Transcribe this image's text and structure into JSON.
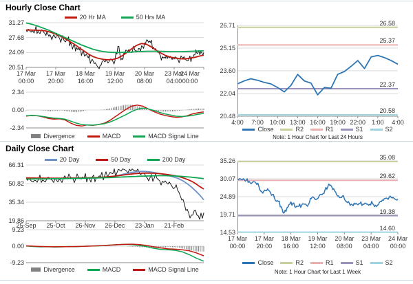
{
  "colors": {
    "price_black": "#1a1a1a",
    "ma_red": "#c0190f",
    "ma_green": "#0ea653",
    "ma_blue": "#6d91c9",
    "close_blue": "#2e75b6",
    "r2_olive": "#c9cf9a",
    "r1_pink": "#e8b0ae",
    "s1_purple": "#9b92ba",
    "s2_cyan": "#9ed3df",
    "divergence_gray": "#818181",
    "gridline": "#d9d9d9",
    "axis": "#8c8c8c",
    "divider": "#ccd6dd"
  },
  "chart_data": [
    {
      "id": "hm",
      "type": "line",
      "title": "Hourly Close Chart",
      "ylim": [
        20.51,
        31.27
      ],
      "yticks": [
        "31.27",
        "27.68",
        "24.09",
        "20.51"
      ],
      "xticks": [
        "17 Mar|00:00",
        "17 Mar|20:00",
        "18 Mar|16:00",
        "19 Mar|12:00",
        "20 Mar|08:00",
        "23 Mar|04:00",
        "24 Mar|00:00"
      ],
      "legend": [
        {
          "label": "20 Hr MA",
          "color": "#c0190f",
          "type": "line"
        },
        {
          "label": "50 Hrs MA",
          "color": "#0ea653",
          "type": "line"
        }
      ],
      "series": [
        {
          "name": "Close",
          "color": "#1a1a1a",
          "width": 1,
          "noise": 0.6,
          "values": [
            29.4,
            29.6,
            29.3,
            29.5,
            29.2,
            29.3,
            28.9,
            29.1,
            28.4,
            27.9,
            27.6,
            27.8,
            27.3,
            26.8,
            27.0,
            26.4,
            25.8,
            25.3,
            24.7,
            24.1,
            23.4,
            22.8,
            22.1,
            21.4,
            20.8,
            21.0,
            22.1,
            22.4,
            21.9,
            22.3,
            22.1,
            25.6,
            22.3,
            23.9,
            24.6,
            24.3,
            24.7,
            24.5,
            25.1,
            25.7,
            26.4,
            27.1,
            26.5,
            25.4,
            24.6,
            23.8,
            23.1,
            22.7,
            23.2,
            22.8,
            22.5,
            22.8,
            22.4,
            22.7,
            22.3,
            22.6,
            23.0,
            23.5,
            23.9,
            24.3,
            24.1
          ]
        },
        {
          "name": "20 Hr MA",
          "color": "#c0190f",
          "width": 1.8,
          "noise": 0,
          "values": [
            29.5,
            29.5,
            29.45,
            29.4,
            29.3,
            29.0,
            28.6,
            28.1,
            27.5,
            26.8,
            26.1,
            25.3,
            24.5,
            23.7,
            23.1,
            22.7,
            22.45,
            22.35,
            22.4,
            22.7,
            23.3,
            24.1,
            25.0,
            25.8,
            26.25,
            26.1,
            25.5,
            24.7,
            24.0,
            23.4,
            23.0,
            22.75,
            22.6,
            22.55,
            22.7,
            22.9,
            23.2,
            23.45
          ]
        },
        {
          "name": "50 Hrs MA",
          "color": "#0ea653",
          "width": 1.8,
          "noise": 0,
          "values": [
            31.2,
            30.9,
            30.5,
            30.0,
            29.5,
            28.9,
            28.3,
            27.7,
            27.1,
            26.5,
            25.9,
            25.4,
            24.9,
            24.55,
            24.3,
            24.15,
            24.1,
            24.1,
            24.15,
            24.2,
            24.3,
            24.35,
            24.4,
            24.4,
            24.4,
            24.35,
            24.3,
            24.3,
            24.3,
            24.35,
            24.4,
            24.45,
            24.5
          ]
        }
      ]
    },
    {
      "id": "hmacd",
      "type": "macd",
      "ylim": [
        -2.34,
        2.34
      ],
      "yticks": [
        "2.34",
        "0.00",
        "-2.34"
      ],
      "legend": [
        {
          "label": "Divergence",
          "color": "#818181",
          "type": "bar"
        },
        {
          "label": "MACD",
          "color": "#c0190f",
          "type": "line"
        },
        {
          "label": "MACD Signal Line",
          "color": "#0ea653",
          "type": "line"
        }
      ],
      "bars": {
        "name": "Divergence",
        "color": "#818181",
        "values": [
          -0.05,
          0.02,
          0.0,
          -0.05,
          -0.15,
          -0.15,
          -0.05,
          -0.1,
          -0.25,
          -0.3,
          -0.2,
          0.0,
          -0.02,
          0.0,
          0.05,
          0.2,
          0.4,
          0.55,
          0.7,
          0.7,
          0.55,
          0.25,
          0.0,
          -0.15,
          -0.2,
          -0.2,
          -0.2,
          -0.15,
          -0.05,
          0.05,
          0.15,
          0.2,
          0.2
        ]
      },
      "series": [
        {
          "name": "MACD",
          "color": "#c0190f",
          "width": 1.5,
          "noise": 0,
          "values": [
            -0.8,
            -0.7,
            -0.75,
            -0.9,
            -1.1,
            -1.2,
            -1.15,
            -1.3,
            -1.7,
            -2.0,
            -2.1,
            -1.95,
            -2.0,
            -1.9,
            -1.75,
            -1.4,
            -0.9,
            -0.4,
            0.1,
            0.5,
            0.65,
            0.5,
            0.15,
            -0.2,
            -0.5,
            -0.7,
            -0.85,
            -0.95,
            -0.9,
            -0.75,
            -0.5,
            -0.35,
            -0.25
          ]
        },
        {
          "name": "MACD Signal Line",
          "color": "#0ea653",
          "width": 1.5,
          "noise": 0,
          "values": [
            -0.75,
            -0.72,
            -0.75,
            -0.85,
            -0.95,
            -1.05,
            -1.1,
            -1.2,
            -1.45,
            -1.7,
            -1.9,
            -1.95,
            -1.98,
            -1.9,
            -1.8,
            -1.6,
            -1.3,
            -0.95,
            -0.6,
            -0.2,
            0.1,
            0.25,
            0.15,
            -0.05,
            -0.3,
            -0.5,
            -0.65,
            -0.8,
            -0.85,
            -0.8,
            -0.7,
            -0.55,
            -0.45
          ]
        }
      ]
    },
    {
      "id": "p24",
      "type": "line",
      "note": "Note: 1 Hour Chart for Last 24 Hours",
      "ylim": [
        20.48,
        26.71
      ],
      "yticks": [
        "26.71",
        "25.15",
        "23.60",
        "22.04",
        "20.48"
      ],
      "xticks": [
        "4:00",
        "7:00",
        "10:00",
        "13:00",
        "16:00",
        "19:00",
        "22:00",
        "1:00",
        "4:00"
      ],
      "levels": [
        {
          "name": "R2",
          "label": "26.58",
          "value": 26.58,
          "color": "#c9cf9a"
        },
        {
          "name": "R1",
          "label": "25.37",
          "value": 25.37,
          "color": "#e8b0ae"
        },
        {
          "name": "S1",
          "label": "22.37",
          "value": 22.37,
          "color": "#9b92ba"
        },
        {
          "name": "S2",
          "label": "20.58",
          "value": 20.58,
          "color": "#9ed3df"
        }
      ],
      "legend": [
        {
          "label": "Close",
          "color": "#2e75b6",
          "type": "line"
        },
        {
          "label": "R2",
          "color": "#c9cf9a",
          "type": "line"
        },
        {
          "label": "R1",
          "color": "#e8b0ae",
          "type": "line"
        },
        {
          "label": "S1",
          "color": "#9b92ba",
          "type": "line"
        },
        {
          "label": "S2",
          "color": "#9ed3df",
          "type": "line"
        }
      ],
      "series": [
        {
          "name": "Close",
          "color": "#2e75b6",
          "width": 1.8,
          "noise": 0,
          "values": [
            22.7,
            22.9,
            23.05,
            22.95,
            22.8,
            22.7,
            22.45,
            22.15,
            22.6,
            23.35,
            22.9,
            22.75,
            21.95,
            22.45,
            22.4,
            23.35,
            23.55,
            23.9,
            24.3,
            23.75,
            24.55,
            24.65,
            24.5,
            24.3,
            24.05
          ]
        }
      ]
    },
    {
      "id": "dm",
      "type": "line",
      "title": "Daily Close Chart",
      "ylim": [
        19.86,
        66.31
      ],
      "yticks": [
        "66.31",
        "50.82",
        "35.34",
        "19.86"
      ],
      "xticks": [
        "25-Sep",
        "25-Oct",
        "26-Nov",
        "26-Dec",
        "23-Jan",
        "21-Feb"
      ],
      "legend": [
        {
          "label": "20 Day",
          "color": "#6d91c9",
          "type": "line"
        },
        {
          "label": "50 Day",
          "color": "#c0190f",
          "type": "line"
        },
        {
          "label": "200 Day",
          "color": "#0ea653",
          "type": "line"
        }
      ],
      "series": [
        {
          "name": "Close",
          "color": "#1a1a1a",
          "width": 1,
          "noise": 2.2,
          "values": [
            55.2,
            54.0,
            53.6,
            54.6,
            53.9,
            54.8,
            54.3,
            55.1,
            54.5,
            55.3,
            54.7,
            55.5,
            54.9,
            55.6,
            55.1,
            55.8,
            56.3,
            56.0,
            56.8,
            57.5,
            58.3,
            59.2,
            60.2,
            61.2,
            62.2,
            62.8,
            62.0,
            62.9,
            59.0,
            56.8,
            55.8,
            55.3,
            54.2,
            52.8,
            51.5,
            50.3,
            47.5,
            43.5,
            37.5,
            29.5,
            24.5,
            28.5,
            21.0,
            26.5
          ]
        },
        {
          "name": "20 Day",
          "color": "#6d91c9",
          "width": 1.8,
          "noise": 0,
          "values": [
            55.3,
            55.2,
            55.1,
            55.0,
            55.0,
            54.9,
            54.9,
            54.9,
            55.0,
            55.0,
            55.1,
            55.1,
            55.2,
            55.2,
            55.3,
            55.4,
            55.5,
            55.7,
            55.9,
            56.2,
            56.6,
            57.1,
            57.8,
            58.6,
            59.4,
            60.1,
            60.7,
            61.0,
            61.0,
            60.7,
            60.2,
            59.6,
            58.9,
            58.1,
            57.2,
            56.2,
            55.0,
            53.3,
            51.0,
            48.2,
            45.0,
            41.5,
            37.3
          ]
        },
        {
          "name": "50 Day",
          "color": "#c0190f",
          "width": 1.8,
          "noise": 0,
          "values": [
            55.6,
            55.5,
            55.5,
            55.4,
            55.4,
            55.3,
            55.3,
            55.3,
            55.3,
            55.4,
            55.4,
            55.5,
            55.5,
            55.6,
            55.6,
            55.7,
            55.8,
            55.9,
            56.1,
            56.3,
            56.6,
            56.9,
            57.3,
            57.7,
            58.2,
            58.6,
            59.0,
            59.3,
            59.5,
            59.6,
            59.5,
            59.4,
            59.2,
            58.9,
            58.5,
            58.0,
            57.4,
            56.6,
            55.6,
            54.4,
            52.9,
            50.9,
            48.4,
            46.3
          ]
        },
        {
          "name": "200 Day",
          "color": "#0ea653",
          "width": 1.8,
          "noise": 0,
          "values": [
            54.6,
            54.6,
            54.7,
            54.7,
            54.8,
            54.8,
            54.9,
            54.9,
            55.0,
            55.0,
            55.1,
            55.1,
            55.2,
            55.3,
            55.3,
            55.4,
            55.5,
            55.6,
            55.7,
            55.8,
            55.9,
            56.1,
            56.2,
            56.4,
            56.5,
            56.7,
            56.8,
            57.0,
            57.1,
            57.2,
            57.3,
            57.4,
            57.4,
            57.4,
            57.3,
            57.2,
            57.0,
            56.8,
            56.5,
            56.2,
            55.8,
            55.4,
            54.9
          ]
        }
      ]
    },
    {
      "id": "dmacd",
      "type": "macd",
      "ylim": [
        -9.23,
        9.23
      ],
      "yticks": [
        "9.23",
        "0.00",
        "-9.23"
      ],
      "legend": [
        {
          "label": "Divergence",
          "color": "#818181",
          "type": "bar"
        },
        {
          "label": "MACD",
          "color": "#0ea653",
          "type": "line"
        },
        {
          "label": "MACD Signal Line",
          "color": "#c0190f",
          "type": "line"
        }
      ],
      "bars": {
        "name": "Divergence",
        "color": "#818181",
        "values": [
          -0.1,
          -0.2,
          -0.2,
          0.0,
          -0.15,
          -0.1,
          0.05,
          -0.1,
          0.0,
          0.05,
          0.0,
          0.05,
          0.1,
          0.05,
          -0.05,
          -0.3,
          -0.5,
          -0.7,
          -0.8,
          -0.8,
          -0.5,
          -0.6,
          -1.2,
          -2.2,
          -3.0,
          -3.0
        ]
      },
      "series": [
        {
          "name": "MACD",
          "color": "#0ea653",
          "width": 1.5,
          "noise": 0,
          "values": [
            0.1,
            -0.2,
            -0.4,
            -0.3,
            -0.5,
            -0.4,
            -0.2,
            -0.3,
            -0.1,
            0.1,
            0.2,
            0.4,
            0.7,
            0.9,
            1.0,
            0.8,
            0.4,
            -0.3,
            -1.2,
            -1.8,
            -2.0,
            -2.3,
            -3.2,
            -4.8,
            -6.8,
            -8.4
          ]
        },
        {
          "name": "MACD Signal Line",
          "color": "#c0190f",
          "width": 1.5,
          "noise": 0,
          "values": [
            0.2,
            0.0,
            -0.2,
            -0.3,
            -0.35,
            -0.3,
            -0.25,
            -0.2,
            -0.1,
            0.05,
            0.2,
            0.35,
            0.6,
            0.85,
            1.05,
            1.1,
            0.9,
            0.4,
            -0.4,
            -1.0,
            -1.5,
            -1.7,
            -2.0,
            -2.6,
            -3.8,
            -5.4
          ]
        }
      ]
    },
    {
      "id": "p1w",
      "type": "line",
      "note": "Note: 1 Hour Chart for Last 1 Week",
      "ylim": [
        14.53,
        35.26
      ],
      "yticks": [
        "35.26",
        "30.07",
        "24.89",
        "19.71",
        "14.53"
      ],
      "xticks": [
        "17 Mar|00:00",
        "17 Mar|20:00",
        "18 Mar|16:00",
        "19 Mar|12:00",
        "20 Mar|08:00",
        "23 Mar|04:00",
        "24 Mar|00:00"
      ],
      "levels": [
        {
          "name": "R2",
          "label": "35.08",
          "value": 35.08,
          "color": "#c9cf9a"
        },
        {
          "name": "R1",
          "label": "29.62",
          "value": 29.62,
          "color": "#e8b0ae"
        },
        {
          "name": "S1",
          "label": "19.38",
          "value": 19.38,
          "color": "#9b92ba"
        },
        {
          "name": "S2",
          "label": "14.60",
          "value": 14.6,
          "color": "#9ed3df"
        }
      ],
      "legend": [
        {
          "label": "Close",
          "color": "#2e75b6",
          "type": "line"
        },
        {
          "label": "R2",
          "color": "#c9cf9a",
          "type": "line"
        },
        {
          "label": "R1",
          "color": "#e8b0ae",
          "type": "line"
        },
        {
          "label": "S1",
          "color": "#9b92ba",
          "type": "line"
        },
        {
          "label": "S2",
          "color": "#9ed3df",
          "type": "line"
        }
      ],
      "series": [
        {
          "name": "Close",
          "color": "#2e75b6",
          "width": 1.5,
          "noise": 0.35,
          "values": [
            29.9,
            30.05,
            30.1,
            29.6,
            29.3,
            28.9,
            29.15,
            28.8,
            26.5,
            26.4,
            26.6,
            26.5,
            25.5,
            23.8,
            23.5,
            22.0,
            20.2,
            21.7,
            22.8,
            23.0,
            21.8,
            22.1,
            22.4,
            22.7,
            22.1,
            24.4,
            24.8,
            24.1,
            25.1,
            25.5,
            26.8,
            27.8,
            28.2,
            27.2,
            25.5,
            24.6,
            25.1,
            23.7,
            23.5,
            22.7,
            23.0,
            22.7,
            22.9,
            22.7,
            23.0,
            22.4,
            23.5,
            22.0,
            22.4,
            23.5,
            23.8,
            24.5,
            24.7,
            24.5,
            24.2,
            24.15
          ]
        }
      ]
    }
  ]
}
